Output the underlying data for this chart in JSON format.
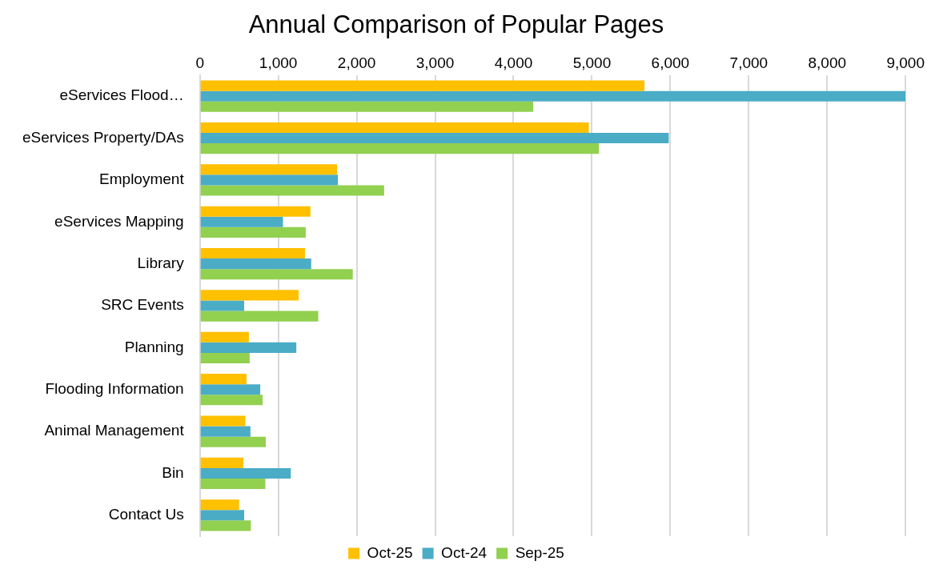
{
  "chart_data": {
    "type": "bar",
    "orientation": "horizontal",
    "title": "Annual Comparison of Popular Pages",
    "categories": [
      "eServices Flood…",
      "eServices Property/DAs",
      "Employment",
      "eServices Mapping",
      "Library",
      "SRC Events",
      "Planning",
      "Flooding Information",
      "Animal Management",
      "Bin",
      "Contact Us"
    ],
    "series": [
      {
        "name": "Oct-25",
        "color": "#ffc000",
        "values": [
          5670,
          4960,
          1750,
          1410,
          1340,
          1260,
          625,
          595,
          580,
          555,
          500
        ]
      },
      {
        "name": "Oct-24",
        "color": "#4bacc6",
        "values": [
          9000,
          5980,
          1760,
          1060,
          1420,
          565,
          1230,
          770,
          645,
          1160,
          565
        ]
      },
      {
        "name": "Sep-25",
        "color": "#92d050",
        "values": [
          4250,
          5090,
          2350,
          1350,
          1950,
          1510,
          635,
          800,
          840,
          835,
          650
        ]
      }
    ],
    "xlim": [
      0,
      9000
    ],
    "xticks": [
      {
        "value": 0,
        "label": "0"
      },
      {
        "value": 1000,
        "label": "1,000"
      },
      {
        "value": 2000,
        "label": "2,000"
      },
      {
        "value": 3000,
        "label": "3,000"
      },
      {
        "value": 4000,
        "label": "4,000"
      },
      {
        "value": 5000,
        "label": "5,000"
      },
      {
        "value": 6000,
        "label": "6,000"
      },
      {
        "value": 7000,
        "label": "7,000"
      },
      {
        "value": 8000,
        "label": "8,000"
      },
      {
        "value": 9000,
        "label": "9,000"
      }
    ],
    "grid": "x",
    "legend": "bottom"
  }
}
